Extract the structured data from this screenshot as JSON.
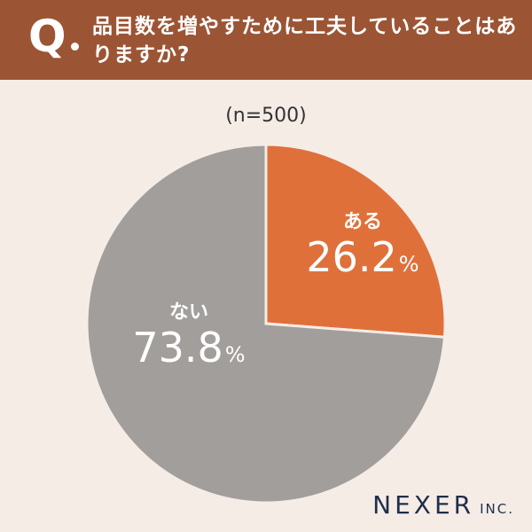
{
  "question": {
    "mark": "Q",
    "text": "品目数を増やすために工夫していることはありますか?"
  },
  "sample": "(n=500)",
  "chart_data": {
    "type": "pie",
    "unit": "%",
    "slices": [
      {
        "label": "ある",
        "value": 26.2,
        "color": "#e0703a"
      },
      {
        "label": "ない",
        "value": 73.8,
        "color": "#a19e9c"
      }
    ]
  },
  "logo": {
    "main": "NEXER",
    "sub": "INC."
  }
}
